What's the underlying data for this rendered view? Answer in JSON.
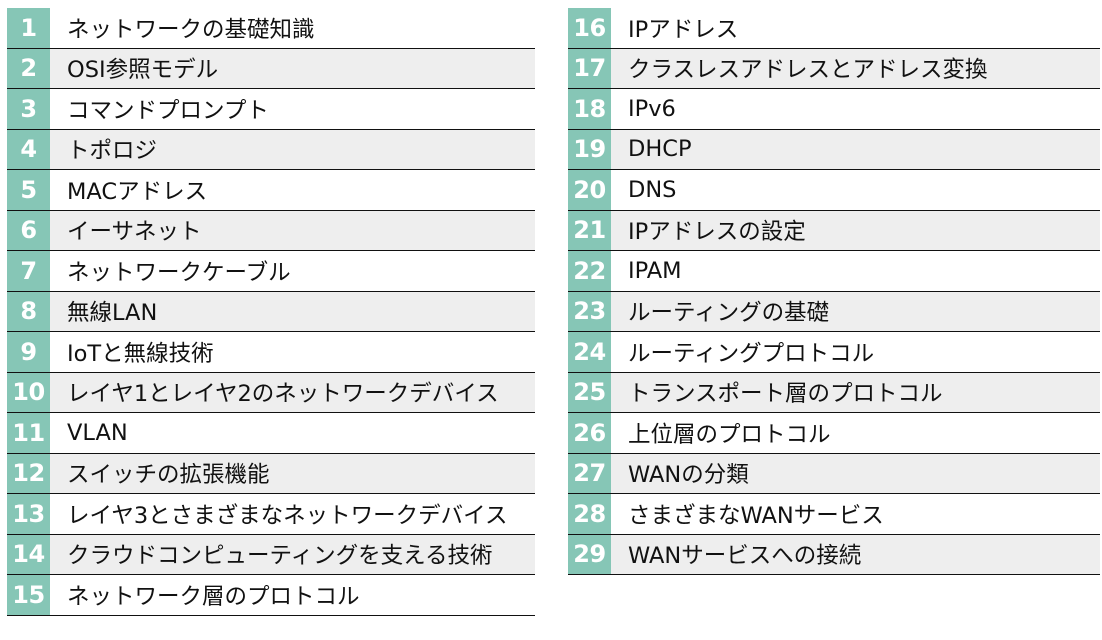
{
  "chapters": [
    {
      "num": "1",
      "title": "ネットワークの基礎知識"
    },
    {
      "num": "2",
      "title": "OSI参照モデル"
    },
    {
      "num": "3",
      "title": "コマンドプロンプト"
    },
    {
      "num": "4",
      "title": "トポロジ"
    },
    {
      "num": "5",
      "title": "MACアドレス"
    },
    {
      "num": "6",
      "title": "イーサネット"
    },
    {
      "num": "7",
      "title": "ネットワークケーブル"
    },
    {
      "num": "8",
      "title": "無線LAN"
    },
    {
      "num": "9",
      "title": "IoTと無線技術"
    },
    {
      "num": "10",
      "title": "レイヤ1とレイヤ2のネットワークデバイス"
    },
    {
      "num": "11",
      "title": "VLAN"
    },
    {
      "num": "12",
      "title": "スイッチの拡張機能"
    },
    {
      "num": "13",
      "title": "レイヤ3とさまざまなネットワークデバイス"
    },
    {
      "num": "14",
      "title": "クラウドコンピューティングを支える技術"
    },
    {
      "num": "15",
      "title": "ネットワーク層のプロトコル"
    },
    {
      "num": "16",
      "title": "IPアドレス"
    },
    {
      "num": "17",
      "title": "クラスレスアドレスとアドレス変換"
    },
    {
      "num": "18",
      "title": "IPv6"
    },
    {
      "num": "19",
      "title": "DHCP"
    },
    {
      "num": "20",
      "title": "DNS"
    },
    {
      "num": "21",
      "title": "IPアドレスの設定"
    },
    {
      "num": "22",
      "title": "IPAM"
    },
    {
      "num": "23",
      "title": "ルーティングの基礎"
    },
    {
      "num": "24",
      "title": "ルーティングプロトコル"
    },
    {
      "num": "25",
      "title": "トランスポート層のプロトコル"
    },
    {
      "num": "26",
      "title": "上位層のプロトコル"
    },
    {
      "num": "27",
      "title": "WANの分類"
    },
    {
      "num": "28",
      "title": "さまざまなWANサービス"
    },
    {
      "num": "29",
      "title": "WANサービスへの接続"
    }
  ],
  "colors": {
    "number_cell": "#86c6b6",
    "shaded_row": "#eeeeee",
    "rule": "#111111"
  }
}
